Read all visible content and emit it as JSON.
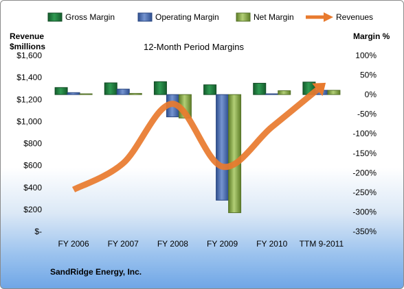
{
  "chart_data": {
    "type": "bar",
    "title": "12-Month Period Margins",
    "company": "SandRidge Energy, Inc.",
    "categories": [
      "FY 2006",
      "FY 2007",
      "FY 2008",
      "FY 2009",
      "FY 2010",
      "TTM 9-2011"
    ],
    "left_axis": {
      "label_line1": "Revenue",
      "label_line2": "$millions",
      "min": 0,
      "max": 1600,
      "ticks": [
        "$-",
        "$200",
        "$400",
        "$600",
        "$800",
        "$1,000",
        "$1,200",
        "$1,400",
        "$1,600"
      ]
    },
    "right_axis": {
      "label": "Margin %",
      "min": -350,
      "max": 100,
      "ticks": [
        "100%",
        "50%",
        "0%",
        "-50%",
        "-100%",
        "-150%",
        "-200%",
        "-250%",
        "-300%",
        "-350%"
      ]
    },
    "legend_position": "top",
    "series": [
      {
        "name": "Gross Margin",
        "axis": "right",
        "kind": "bar",
        "color": "#1e7b3e",
        "values": [
          18,
          30,
          33,
          25,
          29,
          32
        ]
      },
      {
        "name": "Operating Margin",
        "axis": "right",
        "kind": "bar",
        "color": "#4a6fb5",
        "values": [
          5,
          14,
          -57,
          -270,
          2,
          11
        ]
      },
      {
        "name": "Net Margin",
        "axis": "right",
        "kind": "bar",
        "color": "#8aae4a",
        "values": [
          2,
          3,
          -60,
          -302,
          10,
          11
        ]
      },
      {
        "name": "Revenues",
        "axis": "left",
        "kind": "line",
        "color": "#e87a2e",
        "values": [
          380,
          620,
          1160,
          590,
          950,
          1320
        ]
      }
    ]
  }
}
